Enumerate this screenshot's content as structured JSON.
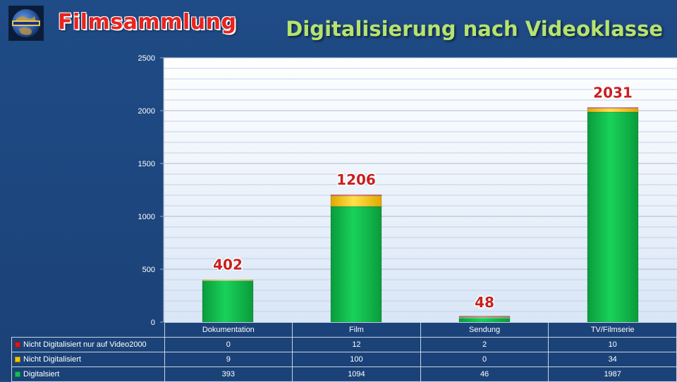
{
  "header": {
    "title_left": "Filmsammlung",
    "title_right": "Digitalisierung nach Videoklasse"
  },
  "chart_data": {
    "type": "bar",
    "stacked": true,
    "categories": [
      "Dokumentation",
      "Film",
      "Sendung",
      "TV/Filmserie"
    ],
    "series": [
      {
        "name": "Digitalsiert",
        "values": [
          393,
          1094,
          46,
          1987
        ],
        "color": "#12c24f"
      },
      {
        "name": "Nicht Digitalisiert",
        "values": [
          9,
          100,
          0,
          34
        ],
        "color": "#f3c400"
      },
      {
        "name": "Nicht Digitalisiert nur auf Video2000",
        "values": [
          0,
          12,
          2,
          10
        ],
        "color": "#d81b1b"
      }
    ],
    "totals": [
      402,
      1206,
      48,
      2031
    ],
    "ylim": [
      0,
      2500
    ],
    "yticks": [
      0,
      500,
      1000,
      1500,
      2000,
      2500
    ],
    "grid": true,
    "legend": "data-table"
  }
}
